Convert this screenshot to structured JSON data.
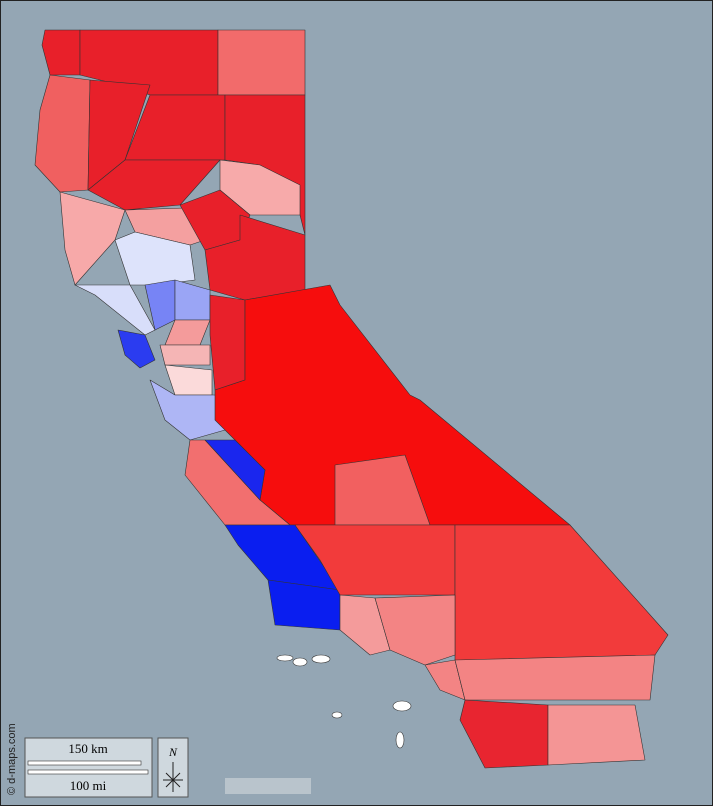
{
  "scale_bar": {
    "km": "150 km",
    "mi": "100 mi"
  },
  "compass": "N",
  "credit": "© d-maps.com"
}
